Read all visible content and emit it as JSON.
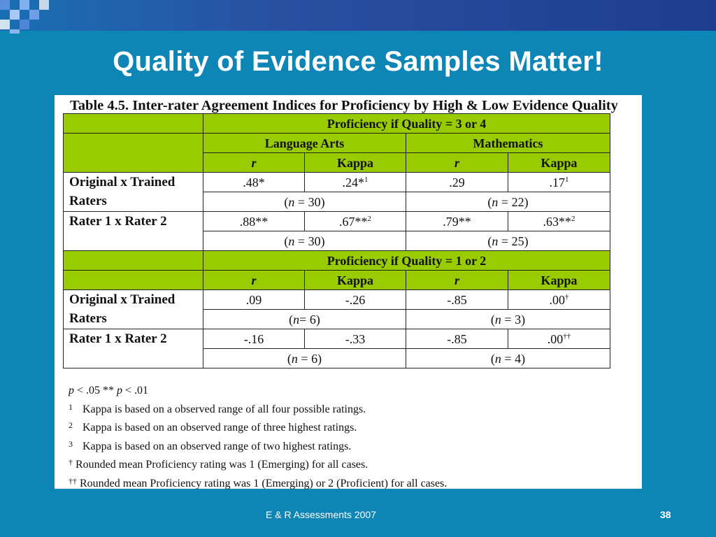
{
  "slide": {
    "title": "Quality of Evidence Samples Matter!",
    "footer": "E & R Assessments 2007",
    "page_number": "38"
  },
  "table": {
    "caption": "Table 4.5. Inter-rater Agreement Indices for Proficiency by High & Low Evidence Quality",
    "section_high": "Proficiency if Quality = 3 or 4",
    "section_low": "Proficiency if Quality = 1 or 2",
    "subject_la": "Language Arts",
    "subject_math": "Mathematics",
    "col_r": "r",
    "col_kappa": "Kappa",
    "row_original": "Original x Trained",
    "row_original_2": "Raters",
    "row_rater": "Rater 1 x Rater 2",
    "high": {
      "orig": {
        "la_r": ".48*",
        "la_k": ".24*",
        "la_k_sup": "1",
        "m_r": ".29",
        "m_k": ".17",
        "m_k_sup": "1",
        "la_n_pre": "(",
        "la_n_var": "n",
        "la_n_post": " = 30)",
        "m_n_pre": "(",
        "m_n_var": "n",
        "m_n_post": " = 22)"
      },
      "rater": {
        "la_r": ".88**",
        "la_k": ".67**",
        "la_k_sup": "2",
        "m_r": ".79**",
        "m_k": ".63**",
        "m_k_sup": "2",
        "la_n_pre": "(",
        "la_n_var": "n",
        "la_n_post": " = 30)",
        "m_n_pre": "(",
        "m_n_var": "n",
        "m_n_post": " = 25)"
      }
    },
    "low": {
      "orig": {
        "la_r": ".09",
        "la_k": "-.26",
        "m_r": "-.85",
        "m_k": ".00",
        "m_k_sup": "†",
        "la_n_pre": "(",
        "la_n_var": "n",
        "la_n_post": "= 6)",
        "m_n_pre": "(",
        "m_n_var": "n",
        "m_n_post": " = 3)"
      },
      "rater": {
        "la_r": "-.16",
        "la_k": "-.33",
        "m_r": "-.85",
        "m_k": ".00",
        "m_k_sup": "††",
        "la_n_pre": "(",
        "la_n_var": "n",
        "la_n_post": " = 6)",
        "m_n_pre": "(",
        "m_n_var": "n",
        "m_n_post": " = 4)"
      }
    }
  },
  "notes": {
    "sig_p1": "p",
    "sig_text1": " < .05  ** ",
    "sig_p2": "p",
    "sig_text2": " < .01",
    "n1_mark": "1",
    "n1": "Kappa is based on a observed range of all four possible ratings.",
    "n2_mark": "2",
    "n2": "Kappa is based on an observed range of three highest ratings.",
    "n3_mark": "3",
    "n3": "Kappa is based on an observed range of two highest ratings.",
    "n4_mark": "†",
    "n4": "Rounded mean Proficiency rating was 1 (Emerging) for all cases.",
    "n5_mark": "††",
    "n5": "Rounded mean Proficiency rating was 1 (Emerging) or 2 (Proficient) for all cases."
  },
  "colors": {
    "background": "#0d86b5",
    "header_green": "#99cc00",
    "title_text": "#ffffff"
  }
}
